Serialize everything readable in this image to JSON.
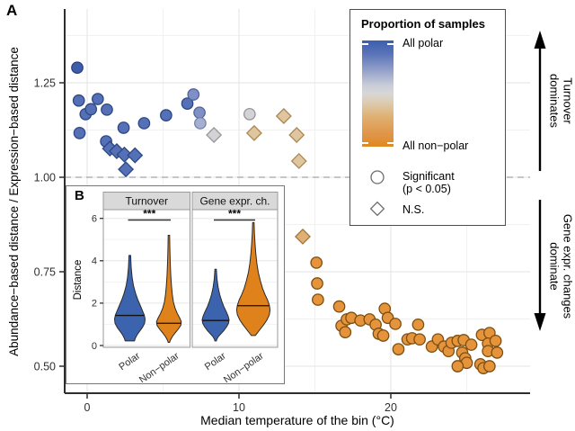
{
  "panel_labels": {
    "a": "A",
    "b": "B"
  },
  "legend": {
    "title": "Proportion of samples",
    "top_label": "All polar",
    "bottom_label": "All non−polar",
    "significant_label": "Significant\n(p < 0.05)",
    "ns_label": "N.S."
  },
  "annotations": {
    "turnover": "Turnover\ndominates",
    "gene": "Gene expr. changes\ndominate"
  },
  "chart_data": [
    {
      "type": "scatter",
      "panel": "A",
      "xlabel": "Median temperature of the bin (°C)",
      "ylabel": "Abundance−based distance / Expression−based distance",
      "xlim": [
        -1.5,
        29.2
      ],
      "ylim": [
        0.43,
        1.445
      ],
      "x_ticks": {
        "values": [
          0,
          10,
          20
        ],
        "labels": [
          "0",
          "10",
          "20"
        ],
        "minor": [
          5,
          15,
          25
        ]
      },
      "y_ticks": {
        "values": [
          0.5,
          0.75,
          1.0,
          1.25
        ],
        "labels": [
          "0.50",
          "0.75",
          "1.00",
          "1.25"
        ],
        "minor": [
          0.625,
          0.875,
          1.125,
          1.375
        ]
      },
      "reference_line": {
        "y": 1.0,
        "style": "dashed",
        "color": "#b3b3b3"
      },
      "color_scale": {
        "title": "Proportion of samples",
        "high": "All polar",
        "low": "All non−polar"
      },
      "shape_legend": {
        "circle": "Significant (p < 0.05)",
        "diamond": "N.S."
      },
      "palette": {
        "polar_dark": {
          "fill": "#3f5dab",
          "stroke": "#25407c"
        },
        "polar": {
          "fill": "#5570b6",
          "stroke": "#2c4884"
        },
        "polar_light": {
          "fill": "#7e90c6",
          "stroke": "#52659b"
        },
        "polar_pale": {
          "fill": "#a4afd2",
          "stroke": "#7580aa"
        },
        "neutral": {
          "fill": "#d3d3d5",
          "stroke": "#97979b"
        },
        "nonpolar_pale": {
          "fill": "#e0c69e",
          "stroke": "#ab8756"
        },
        "nonpolar_light": {
          "fill": "#deb074",
          "stroke": "#a1763a"
        },
        "nonpolar": {
          "fill": "#e5943c",
          "stroke": "#7c4e10"
        }
      },
      "points": [
        [
          -0.65,
          1.29,
          "c",
          "polar_dark"
        ],
        [
          -0.55,
          1.203,
          "c",
          "polar"
        ],
        [
          0.7,
          1.207,
          "c",
          "polar"
        ],
        [
          -0.1,
          1.167,
          "c",
          "polar"
        ],
        [
          0.25,
          1.18,
          "c",
          "polar"
        ],
        [
          1.3,
          1.179,
          "c",
          "polar"
        ],
        [
          -0.5,
          1.117,
          "c",
          "polar"
        ],
        [
          2.4,
          1.131,
          "c",
          "polar"
        ],
        [
          3.75,
          1.143,
          "c",
          "polar"
        ],
        [
          5.2,
          1.164,
          "c",
          "polar"
        ],
        [
          1.25,
          1.095,
          "c",
          "polar"
        ],
        [
          6.6,
          1.195,
          "c",
          "polar"
        ],
        [
          7.0,
          1.219,
          "c",
          "polar_light"
        ],
        [
          7.4,
          1.171,
          "c",
          "polar_light"
        ],
        [
          7.45,
          1.143,
          "c",
          "polar_pale"
        ],
        [
          1.5,
          1.076,
          "d",
          "polar"
        ],
        [
          1.95,
          1.069,
          "d",
          "polar"
        ],
        [
          2.45,
          1.06,
          "d",
          "polar"
        ],
        [
          3.15,
          1.058,
          "d",
          "polar"
        ],
        [
          2.55,
          1.021,
          "d",
          "polar"
        ],
        [
          8.35,
          1.112,
          "d",
          "neutral"
        ],
        [
          10.7,
          1.167,
          "c",
          "neutral"
        ],
        [
          11.0,
          1.117,
          "d",
          "nonpolar_pale"
        ],
        [
          12.95,
          1.162,
          "d",
          "nonpolar_pale"
        ],
        [
          13.8,
          1.112,
          "d",
          "nonpolar_pale"
        ],
        [
          13.95,
          1.043,
          "d",
          "nonpolar_pale"
        ],
        [
          14.2,
          0.843,
          "d",
          "nonpolar_light"
        ],
        [
          15.1,
          0.774,
          "c",
          "nonpolar"
        ],
        [
          15.15,
          0.719,
          "c",
          "nonpolar"
        ],
        [
          15.2,
          0.676,
          "c",
          "nonpolar"
        ],
        [
          16.6,
          0.658,
          "c",
          "nonpolar"
        ],
        [
          16.75,
          0.607,
          "c",
          "nonpolar"
        ],
        [
          17.1,
          0.624,
          "c",
          "nonpolar"
        ],
        [
          17.4,
          0.628,
          "c",
          "nonpolar"
        ],
        [
          17.0,
          0.59,
          "c",
          "nonpolar"
        ],
        [
          18.0,
          0.621,
          "c",
          "nonpolar"
        ],
        [
          18.6,
          0.624,
          "c",
          "nonpolar"
        ],
        [
          19.0,
          0.61,
          "c",
          "nonpolar"
        ],
        [
          19.6,
          0.652,
          "c",
          "nonpolar"
        ],
        [
          19.8,
          0.628,
          "c",
          "nonpolar"
        ],
        [
          20.3,
          0.612,
          "c",
          "nonpolar"
        ],
        [
          19.2,
          0.586,
          "c",
          "nonpolar"
        ],
        [
          19.5,
          0.581,
          "c",
          "nonpolar"
        ],
        [
          21.8,
          0.61,
          "c",
          "nonpolar"
        ],
        [
          20.5,
          0.545,
          "c",
          "nonpolar"
        ],
        [
          21.1,
          0.571,
          "c",
          "nonpolar"
        ],
        [
          21.4,
          0.574,
          "c",
          "nonpolar"
        ],
        [
          21.9,
          0.571,
          "c",
          "nonpolar"
        ],
        [
          22.7,
          0.552,
          "c",
          "nonpolar"
        ],
        [
          23.1,
          0.571,
          "c",
          "nonpolar"
        ],
        [
          23.5,
          0.552,
          "c",
          "nonpolar"
        ],
        [
          23.8,
          0.54,
          "c",
          "nonpolar"
        ],
        [
          24.0,
          0.562,
          "c",
          "nonpolar"
        ],
        [
          24.4,
          0.567,
          "c",
          "nonpolar"
        ],
        [
          24.8,
          0.569,
          "c",
          "nonpolar"
        ],
        [
          25.3,
          0.557,
          "c",
          "nonpolar"
        ],
        [
          24.7,
          0.536,
          "c",
          "nonpolar"
        ],
        [
          24.9,
          0.521,
          "c",
          "nonpolar"
        ],
        [
          25.0,
          0.509,
          "c",
          "nonpolar"
        ],
        [
          24.4,
          0.5,
          "c",
          "nonpolar"
        ],
        [
          26.0,
          0.583,
          "c",
          "nonpolar"
        ],
        [
          26.5,
          0.588,
          "c",
          "nonpolar"
        ],
        [
          26.4,
          0.56,
          "c",
          "nonpolar"
        ],
        [
          26.9,
          0.567,
          "c",
          "nonpolar"
        ],
        [
          26.4,
          0.54,
          "c",
          "nonpolar"
        ],
        [
          27.0,
          0.536,
          "c",
          "nonpolar"
        ],
        [
          25.9,
          0.505,
          "c",
          "nonpolar"
        ],
        [
          26.1,
          0.495,
          "c",
          "nonpolar"
        ],
        [
          26.5,
          0.5,
          "c",
          "nonpolar"
        ]
      ]
    },
    {
      "type": "violin",
      "panel": "B",
      "ylabel": "Distance",
      "y_ticks": {
        "values": [
          0,
          2,
          4,
          6
        ],
        "labels": [
          "0",
          "2",
          "4",
          "6"
        ]
      },
      "ylim": [
        -0.3,
        6.4
      ],
      "significance": "***",
      "facets": [
        {
          "title": "Turnover",
          "violins": [
            {
              "group": "Polar",
              "color": "#3c64ae",
              "median": 1.42,
              "median_hw": 16,
              "profile": [
                [
                  4.25,
                  0.9
                ],
                [
                  3.7,
                  1.5
                ],
                [
                  3.2,
                  2.6
                ],
                [
                  2.8,
                  4.2
                ],
                [
                  2.45,
                  6.5
                ],
                [
                  2.15,
                  9
                ],
                [
                  1.9,
                  11.5
                ],
                [
                  1.65,
                  14
                ],
                [
                  1.45,
                  16
                ],
                [
                  1.25,
                  17
                ],
                [
                  1.05,
                  16.5
                ],
                [
                  0.85,
                  14
                ],
                [
                  0.65,
                  10.5
                ],
                [
                  0.5,
                  8
                ],
                [
                  0.35,
                  6.2
                ],
                [
                  0.22,
                  5.2
                ]
              ]
            },
            {
              "group": "Non−polar",
              "color": "#e0821b",
              "median": 1.05,
              "median_hw": 13.8,
              "profile": [
                [
                  5.2,
                  0.8
                ],
                [
                  4.5,
                  1.1
                ],
                [
                  3.9,
                  1.5
                ],
                [
                  3.3,
                  2.1
                ],
                [
                  2.8,
                  2.9
                ],
                [
                  2.4,
                  3.8
                ],
                [
                  2.05,
                  5
                ],
                [
                  1.75,
                  7
                ],
                [
                  1.5,
                  9.5
                ],
                [
                  1.3,
                  12
                ],
                [
                  1.12,
                  13.8
                ],
                [
                  0.95,
                  13.2
                ],
                [
                  0.78,
                  10.5
                ],
                [
                  0.6,
                  7
                ],
                [
                  0.42,
                  3.8
                ],
                [
                  0.25,
                  1.6
                ],
                [
                  0.15,
                  0.8
                ]
              ]
            }
          ]
        },
        {
          "title": "Gene expr. ch.",
          "violins": [
            {
              "group": "Polar",
              "color": "#3c64ae",
              "median": 1.18,
              "median_hw": 14.8,
              "profile": [
                [
                  3.6,
                  0.8
                ],
                [
                  3.15,
                  1.5
                ],
                [
                  2.75,
                  2.8
                ],
                [
                  2.4,
                  4.6
                ],
                [
                  2.1,
                  6.8
                ],
                [
                  1.85,
                  9
                ],
                [
                  1.6,
                  11.8
                ],
                [
                  1.4,
                  13.8
                ],
                [
                  1.22,
                  15
                ],
                [
                  1.05,
                  14.4
                ],
                [
                  0.88,
                  12.2
                ],
                [
                  0.7,
                  9
                ],
                [
                  0.55,
                  5.8
                ],
                [
                  0.42,
                  3
                ],
                [
                  0.3,
                  1.4
                ],
                [
                  0.22,
                  0.8
                ]
              ]
            },
            {
              "group": "Non−polar",
              "color": "#e0821b",
              "median": 1.88,
              "median_hw": 17.7,
              "profile": [
                [
                  5.8,
                  0.8
                ],
                [
                  5.3,
                  1.2
                ],
                [
                  4.8,
                  1.9
                ],
                [
                  4.3,
                  2.8
                ],
                [
                  3.85,
                  4
                ],
                [
                  3.45,
                  5.5
                ],
                [
                  3.05,
                  7.8
                ],
                [
                  2.7,
                  10.2
                ],
                [
                  2.4,
                  13
                ],
                [
                  2.15,
                  15.8
                ],
                [
                  1.9,
                  17.8
                ],
                [
                  1.68,
                  18.6
                ],
                [
                  1.45,
                  17.8
                ],
                [
                  1.2,
                  15
                ],
                [
                  0.98,
                  11.5
                ],
                [
                  0.78,
                  7.8
                ],
                [
                  0.6,
                  4.6
                ],
                [
                  0.47,
                  2.2
                ]
              ]
            }
          ]
        }
      ]
    }
  ]
}
